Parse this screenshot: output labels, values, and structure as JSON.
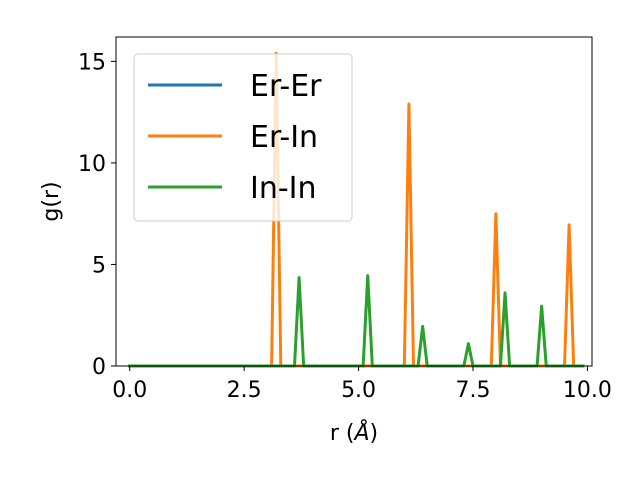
{
  "chart_data": {
    "type": "line",
    "title": "",
    "xlabel": "r (",
    "xlabel_unit": "Å",
    "xlabel_close": ")",
    "ylabel": "g(r)",
    "xlim": [
      -0.3,
      10.1
    ],
    "ylim": [
      0,
      16.2
    ],
    "xticks": [
      0.0,
      2.5,
      5.0,
      7.5,
      10.0
    ],
    "xtick_labels": [
      "0.0",
      "2.5",
      "5.0",
      "7.5",
      "10.0"
    ],
    "yticks": [
      0,
      5,
      10,
      15
    ],
    "ytick_labels": [
      "0",
      "5",
      "10",
      "15"
    ],
    "grid": false,
    "legend_position": "upper-left",
    "series": [
      {
        "name": "Er-Er",
        "color": "#1f77b4",
        "x": [
          0.0,
          9.9
        ],
        "y": [
          0.0,
          0.0
        ]
      },
      {
        "name": "Er-In",
        "color": "#ff7f0e",
        "x": [
          0.0,
          3.1,
          3.2,
          3.3,
          6.0,
          6.1,
          6.2,
          7.9,
          8.0,
          8.1,
          9.5,
          9.6,
          9.7,
          9.9
        ],
        "y": [
          0.0,
          0.0,
          15.4,
          0.0,
          0.0,
          12.9,
          0.0,
          0.0,
          7.5,
          0.0,
          0.0,
          6.95,
          0.0,
          0.0
        ]
      },
      {
        "name": "In-In",
        "color": "#2ca02c",
        "x": [
          0.0,
          3.6,
          3.7,
          3.8,
          5.1,
          5.2,
          5.3,
          6.3,
          6.4,
          6.5,
          7.3,
          7.4,
          7.5,
          8.1,
          8.2,
          8.3,
          8.9,
          9.0,
          9.1,
          9.9
        ],
        "y": [
          0.0,
          0.0,
          4.35,
          0.0,
          0.0,
          4.45,
          0.0,
          0.0,
          1.95,
          0.0,
          0.0,
          1.1,
          0.0,
          0.0,
          3.6,
          0.0,
          0.0,
          2.95,
          0.0,
          0.0
        ]
      }
    ]
  }
}
